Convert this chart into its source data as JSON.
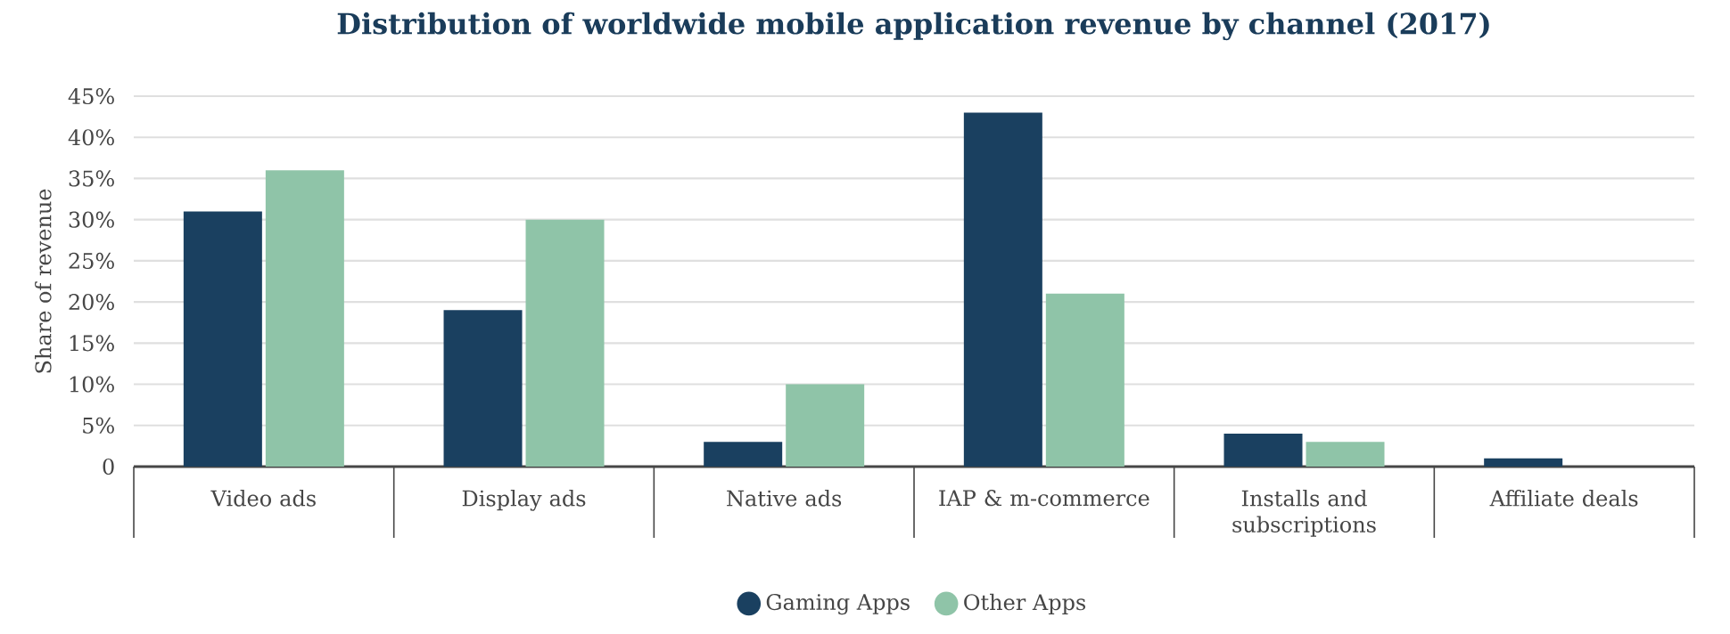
{
  "chart_data": {
    "type": "bar",
    "title": "Distribution of worldwide mobile application revenue by channel (2017)",
    "ylabel": "Share of revenue",
    "categories": [
      "Video ads",
      "Display ads",
      "Native ads",
      "IAP & m-commerce",
      "Installs and subscriptions",
      "Affiliate deals"
    ],
    "series": [
      {
        "name": "Gaming Apps",
        "color": "#1a4060",
        "values": [
          31,
          19,
          3,
          43,
          4,
          1
        ]
      },
      {
        "name": "Other Apps",
        "color": "#8fc4a8",
        "values": [
          36,
          30,
          10,
          21,
          3,
          0
        ]
      }
    ],
    "ylim": [
      0,
      45
    ],
    "yticks": [
      0,
      {
        "value": 5,
        "label": "5%"
      },
      {
        "value": 10,
        "label": "10%"
      },
      {
        "value": 15,
        "label": "15%"
      },
      {
        "value": 20,
        "label": "20%"
      },
      {
        "value": 25,
        "label": "25%"
      },
      {
        "value": 30,
        "label": "30%"
      },
      {
        "value": 35,
        "label": "35%"
      },
      {
        "value": 40,
        "label": "40%"
      },
      {
        "value": 45,
        "label": "45%"
      }
    ],
    "grid": "y",
    "legend": "bottom"
  }
}
